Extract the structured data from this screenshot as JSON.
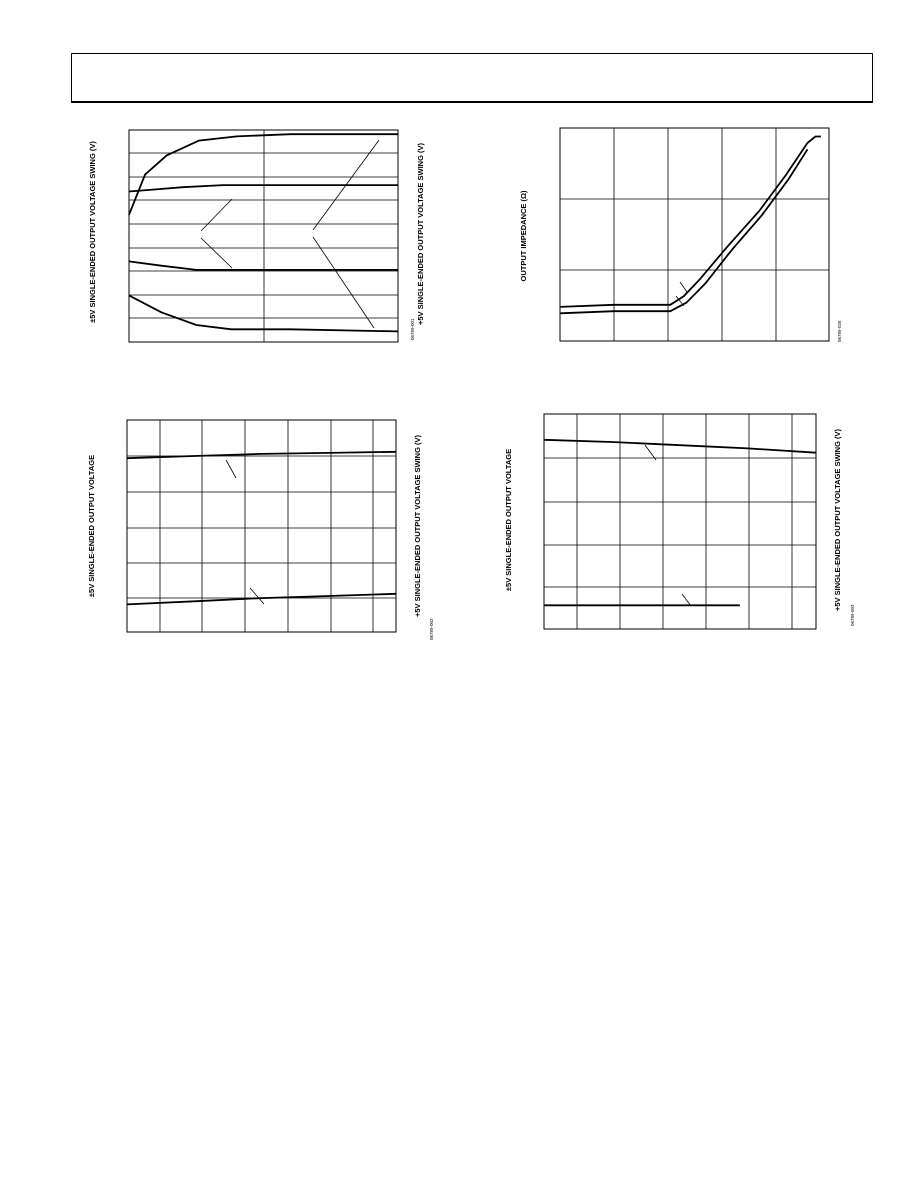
{
  "page": {
    "header_text": ""
  },
  "charts": [
    {
      "id": "fig1",
      "y_label_left": "±5V SINGLE-ENDED OUTPUT VOLTAGE SWING (V)",
      "y_label_right": "+5V SINGLE-ENDED OUTPUT VOLTAGE SWING (V)",
      "figure_code": "06789-001"
    },
    {
      "id": "fig2",
      "y_label_left": "OUTPUT IMPEDANCE (Ω)",
      "y_label_right": "",
      "figure_code": "06789-026"
    },
    {
      "id": "fig3",
      "y_label_left": "±5V SINGLE-ENDED OUTPUT VOLTAGE",
      "y_label_right": "+5V SINGLE-ENDED OUTPUT VOLTAGE SWING (V)",
      "figure_code": "06789-002"
    },
    {
      "id": "fig4",
      "y_label_left": "±5V SINGLE-ENDED OUTPUT VOLTAGE",
      "y_label_right": "+5V SINGLE-ENDED OUTPUT VOLTAGE SWING (V)",
      "figure_code": "06789-003"
    }
  ],
  "chart_data": [
    {
      "type": "line",
      "series": [
        {
          "points": [
            [
              0,
              0.4
            ],
            [
              0.06,
              0.21
            ],
            [
              0.14,
              0.12
            ],
            [
              0.26,
              0.05
            ],
            [
              0.4,
              0.03
            ],
            [
              0.6,
              0.02
            ],
            [
              0.85,
              0.02
            ],
            [
              1,
              0.02
            ]
          ]
        },
        {
          "points": [
            [
              0,
              0.29
            ],
            [
              0.1,
              0.28
            ],
            [
              0.2,
              0.27
            ],
            [
              0.35,
              0.26
            ],
            [
              0.6,
              0.26
            ],
            [
              1,
              0.26
            ]
          ]
        },
        {
          "points": [
            [
              0,
              0.62
            ],
            [
              0.12,
              0.64
            ],
            [
              0.25,
              0.66
            ],
            [
              0.4,
              0.66
            ],
            [
              0.6,
              0.66
            ],
            [
              1,
              0.66
            ]
          ]
        },
        {
          "points": [
            [
              0,
              0.78
            ],
            [
              0.12,
              0.86
            ],
            [
              0.25,
              0.92
            ],
            [
              0.38,
              0.94
            ],
            [
              0.6,
              0.94
            ],
            [
              1,
              0.95
            ]
          ]
        }
      ]
    },
    {
      "type": "line",
      "series": [
        {
          "points": [
            [
              0,
              0.84
            ],
            [
              0.2,
              0.83
            ],
            [
              0.41,
              0.83
            ],
            [
              0.46,
              0.79
            ],
            [
              0.52,
              0.71
            ],
            [
              0.62,
              0.56
            ],
            [
              0.74,
              0.39
            ],
            [
              0.84,
              0.22
            ],
            [
              0.92,
              0.07
            ],
            [
              0.95,
              0.04
            ],
            [
              0.97,
              0.04
            ]
          ]
        },
        {
          "points": [
            [
              0,
              0.87
            ],
            [
              0.2,
              0.86
            ],
            [
              0.41,
              0.86
            ],
            [
              0.47,
              0.82
            ],
            [
              0.54,
              0.73
            ],
            [
              0.64,
              0.57
            ],
            [
              0.75,
              0.41
            ],
            [
              0.85,
              0.24
            ],
            [
              0.92,
              0.1
            ]
          ]
        }
      ]
    },
    {
      "type": "line",
      "series": [
        {
          "points": [
            [
              0,
              0.18
            ],
            [
              0.25,
              0.17
            ],
            [
              0.5,
              0.16
            ],
            [
              0.75,
              0.155
            ],
            [
              1,
              0.15
            ]
          ]
        },
        {
          "points": [
            [
              0,
              0.87
            ],
            [
              0.25,
              0.855
            ],
            [
              0.5,
              0.84
            ],
            [
              0.75,
              0.83
            ],
            [
              1,
              0.82
            ]
          ]
        }
      ]
    },
    {
      "type": "line",
      "series": [
        {
          "points": [
            [
              0,
              0.12
            ],
            [
              0.25,
              0.13
            ],
            [
              0.5,
              0.145
            ],
            [
              0.75,
              0.16
            ],
            [
              1,
              0.18
            ]
          ]
        },
        {
          "points": [
            [
              0,
              0.89
            ],
            [
              0.3,
              0.89
            ],
            [
              0.55,
              0.89
            ],
            [
              0.72,
              0.89
            ]
          ]
        }
      ]
    }
  ]
}
